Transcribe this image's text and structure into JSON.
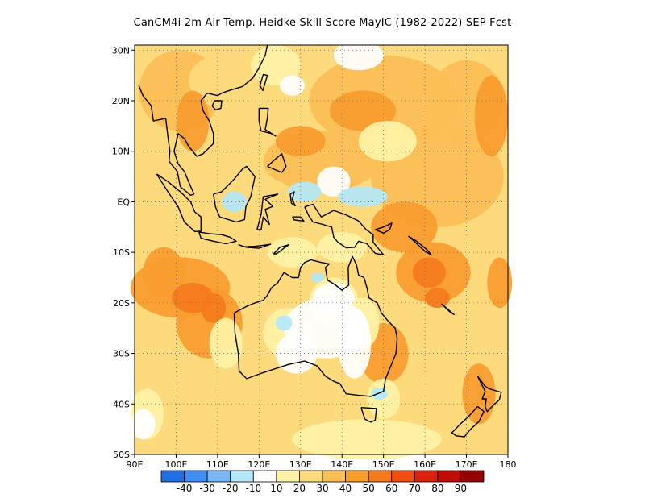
{
  "title": "CanCM4i  2m Air Temp. Heidke Skill Score MayIC (1982-2022) SEP Fcst",
  "map": {
    "lon_range": [
      90,
      180
    ],
    "lat_range": [
      -50,
      31
    ],
    "lon_ticks": [
      {
        "value": 90,
        "label": "90E"
      },
      {
        "value": 100,
        "label": "100E"
      },
      {
        "value": 110,
        "label": "110E"
      },
      {
        "value": 120,
        "label": "120E"
      },
      {
        "value": 130,
        "label": "130E"
      },
      {
        "value": 140,
        "label": "140E"
      },
      {
        "value": 150,
        "label": "150E"
      },
      {
        "value": 160,
        "label": "160E"
      },
      {
        "value": 170,
        "label": "170E"
      },
      {
        "value": 180,
        "label": "180"
      }
    ],
    "lat_ticks": [
      {
        "value": 30,
        "label": "30N"
      },
      {
        "value": 20,
        "label": "20N"
      },
      {
        "value": 10,
        "label": "10N"
      },
      {
        "value": 0,
        "label": "EQ"
      },
      {
        "value": -10,
        "label": "10S"
      },
      {
        "value": -20,
        "label": "20S"
      },
      {
        "value": -30,
        "label": "30S"
      },
      {
        "value": -40,
        "label": "40S"
      },
      {
        "value": -50,
        "label": "50S"
      }
    ]
  },
  "colorbar": {
    "labels": [
      "-40",
      "-30",
      "-20",
      "-10",
      "10",
      "20",
      "30",
      "40",
      "50",
      "60",
      "70",
      "80",
      "90"
    ],
    "colors": [
      "#1f6fe3",
      "#3d8ef0",
      "#78b6f5",
      "#b3e8f8",
      "#ffffff",
      "#fff3a6",
      "#fddb7d",
      "#fbbf55",
      "#f99c2e",
      "#f57a1c",
      "#ee4e12",
      "#d9230c",
      "#bd0e08",
      "#960303"
    ]
  }
}
